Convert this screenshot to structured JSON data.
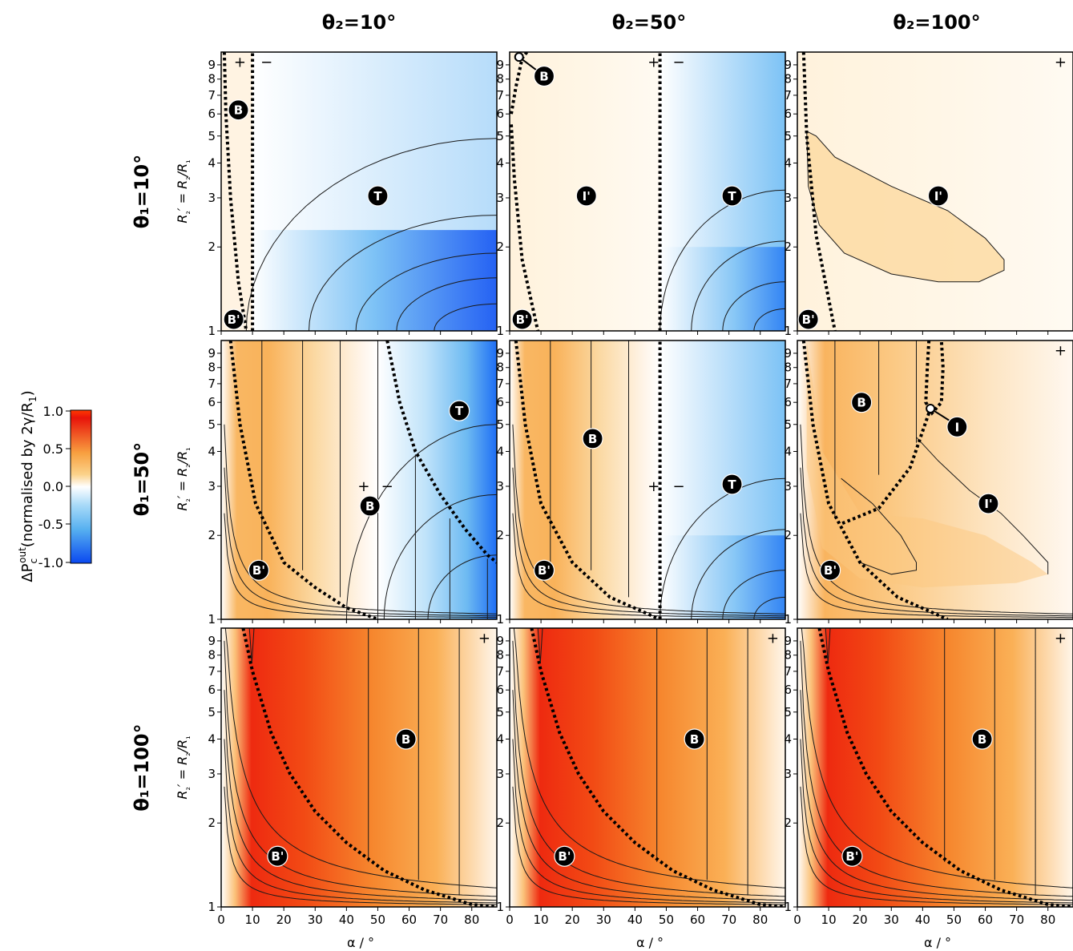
{
  "figure": {
    "col_titles": [
      "θ₂=10°",
      "θ₂=50°",
      "θ₂=100°"
    ],
    "row_titles": [
      "θ₁=10°",
      "θ₁=50°",
      "θ₁=100°"
    ],
    "ylabel_parts": [
      "R",
      "₂",
      "′ = R",
      "₂",
      "/R",
      "₁"
    ],
    "xlabels": [
      "α / °",
      "α / °",
      "α  / °"
    ]
  },
  "colorbar": {
    "label_parts": [
      "ΔP",
      "c",
      "out",
      "(normalised by 2γ/R",
      "1",
      ")"
    ],
    "ticks": [
      "1.0",
      "0.5",
      "0.0",
      "-0.5",
      "-1.0"
    ],
    "range": [
      -1.0,
      1.0
    ],
    "colors": {
      "max": "#e8140a",
      "mid_pos": "#fbd28a",
      "zero": "#ffffff",
      "mid_neg": "#56b0f0",
      "min": "#0a48f0"
    }
  },
  "chart_data": {
    "type": "heatmap",
    "x": {
      "label": "α / °",
      "range": [
        0,
        88
      ],
      "ticks": [
        0,
        10,
        20,
        30,
        40,
        50,
        60,
        70,
        80
      ]
    },
    "y": {
      "label": "R₂′ = R₂/R₁",
      "scale": "log",
      "range": [
        1,
        10
      ],
      "ticks": [
        1,
        2,
        3,
        4,
        5,
        6,
        7,
        8,
        9
      ]
    },
    "panels": [
      {
        "row": 0,
        "col": 0,
        "signs": [
          {
            "t": "+",
            "x": 6,
            "y": 9.2
          },
          {
            "t": "−",
            "x": 14.5,
            "y": 9.2
          }
        ],
        "regions": [
          {
            "label": "B",
            "x": 5.5,
            "y": 6.2
          },
          {
            "label": "T",
            "x": 50,
            "y": 3.05
          },
          {
            "label": "B'",
            "x": 4,
            "y": 1.1
          }
        ]
      },
      {
        "row": 0,
        "col": 1,
        "signs": [
          {
            "t": "+",
            "x": 46,
            "y": 9.2
          },
          {
            "t": "−",
            "x": 54,
            "y": 9.2
          }
        ],
        "regions": [
          {
            "label": "B",
            "x": 11,
            "y": 8.2
          },
          {
            "label": "I'",
            "x": 24.5,
            "y": 3.05
          },
          {
            "label": "T",
            "x": 71,
            "y": 3.05
          },
          {
            "label": "B'",
            "x": 4,
            "y": 1.1
          }
        ]
      },
      {
        "row": 0,
        "col": 2,
        "signs": [
          {
            "t": "+",
            "x": 84,
            "y": 9.2
          }
        ],
        "regions": [
          {
            "label": "I'",
            "x": 45,
            "y": 3.05
          },
          {
            "label": "B'",
            "x": 3.5,
            "y": 1.1
          }
        ]
      },
      {
        "row": 1,
        "col": 0,
        "signs": [
          {
            "t": "+",
            "x": 45.5,
            "y": 3.0
          },
          {
            "t": "−",
            "x": 53,
            "y": 3.0
          }
        ],
        "regions": [
          {
            "label": "T",
            "x": 76,
            "y": 5.6
          },
          {
            "label": "B",
            "x": 47.5,
            "y": 2.55
          },
          {
            "label": "B'",
            "x": 12,
            "y": 1.5
          }
        ]
      },
      {
        "row": 1,
        "col": 1,
        "signs": [
          {
            "t": "+",
            "x": 46,
            "y": 3.0
          },
          {
            "t": "−",
            "x": 54,
            "y": 3.0
          }
        ],
        "regions": [
          {
            "label": "B",
            "x": 26.5,
            "y": 4.45
          },
          {
            "label": "T",
            "x": 71,
            "y": 3.05
          },
          {
            "label": "B'",
            "x": 11,
            "y": 1.5
          }
        ]
      },
      {
        "row": 1,
        "col": 2,
        "signs": [
          {
            "t": "+",
            "x": 84,
            "y": 9.2
          }
        ],
        "regions": [
          {
            "label": "B",
            "x": 20.5,
            "y": 6.0
          },
          {
            "label": "I",
            "x": 51,
            "y": 4.9
          },
          {
            "label": "I'",
            "x": 61,
            "y": 2.6
          },
          {
            "label": "B'",
            "x": 10.5,
            "y": 1.5
          }
        ]
      },
      {
        "row": 2,
        "col": 0,
        "signs": [
          {
            "t": "+",
            "x": 84,
            "y": 9.2
          }
        ],
        "regions": [
          {
            "label": "B",
            "x": 59,
            "y": 4.0
          },
          {
            "label": "B'",
            "x": 18,
            "y": 1.52
          }
        ]
      },
      {
        "row": 2,
        "col": 1,
        "signs": [
          {
            "t": "+",
            "x": 84,
            "y": 9.2
          }
        ],
        "regions": [
          {
            "label": "B",
            "x": 59,
            "y": 4.0
          },
          {
            "label": "B'",
            "x": 17.5,
            "y": 1.52
          }
        ]
      },
      {
        "row": 2,
        "col": 2,
        "signs": [
          {
            "t": "+",
            "x": 84,
            "y": 9.2
          }
        ],
        "regions": [
          {
            "label": "B",
            "x": 59,
            "y": 4.0
          },
          {
            "label": "B'",
            "x": 17.5,
            "y": 1.52
          }
        ]
      }
    ]
  }
}
